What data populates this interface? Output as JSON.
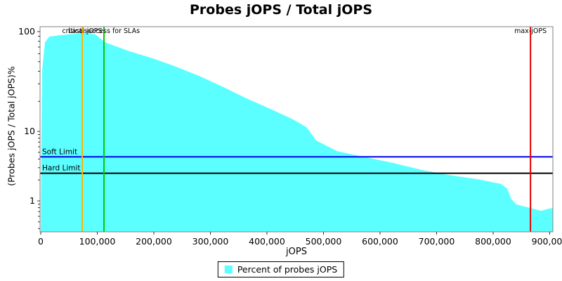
{
  "title": "Probes jOPS / Total jOPS",
  "colors": {
    "area": "#5CFFFF",
    "soft_limit": "#0000E6",
    "hard_limit": "#000000",
    "critical_marker": "#FFB400",
    "sla_marker": "#00CC00",
    "max_marker": "#E60000",
    "frame": "#808080",
    "tick": "#333333"
  },
  "chart_data": {
    "type": "area",
    "title": "Probes jOPS / Total jOPS",
    "xlabel": "jOPS",
    "ylabel": "(Probes jOPS / Total jOPS)%",
    "x_axis": {
      "min": 0,
      "max": 907000,
      "major_ticks": [
        0,
        100000,
        200000,
        300000,
        400000,
        500000,
        600000,
        700000,
        800000,
        900000
      ],
      "tick_labels": [
        "0",
        "100,000",
        "200,000",
        "300,000",
        "400,000",
        "500,000",
        "600,000",
        "700,000",
        "800,000",
        "900,000"
      ]
    },
    "y_axis": {
      "scale": "log",
      "min": 0.36,
      "max": 110,
      "major_ticks": [
        100,
        10,
        1
      ],
      "tick_labels": [
        "100",
        "10",
        "1"
      ],
      "minor_ticks": [
        90,
        80,
        70,
        60,
        50,
        40,
        30,
        20,
        9,
        8,
        7,
        6,
        5,
        4,
        3,
        2,
        0.9,
        0.8,
        0.7,
        0.6,
        0.5,
        0.4
      ]
    },
    "grid": false,
    "legend_position": "bottom-center",
    "legend": {
      "label": "Percent of probes jOPS"
    },
    "series": [
      {
        "name": "Percent of probes jOPS",
        "color": "#5CFFFF",
        "points": [
          [
            0,
            0.37
          ],
          [
            1200,
            10
          ],
          [
            2500,
            41
          ],
          [
            7500,
            78
          ],
          [
            15000,
            89
          ],
          [
            33000,
            92
          ],
          [
            58000,
            95
          ],
          [
            77000,
            97
          ],
          [
            96000,
            94
          ],
          [
            114000,
            78
          ],
          [
            155000,
            64
          ],
          [
            198000,
            54
          ],
          [
            239000,
            44.5
          ],
          [
            280000,
            36
          ],
          [
            322000,
            28
          ],
          [
            363000,
            21.5
          ],
          [
            404000,
            17
          ],
          [
            446000,
            13.2
          ],
          [
            470000,
            11
          ],
          [
            487000,
            7.4
          ],
          [
            524000,
            5.2
          ],
          [
            574000,
            4.25
          ],
          [
            624000,
            3.5
          ],
          [
            673000,
            2.8
          ],
          [
            723000,
            2.35
          ],
          [
            773000,
            2.05
          ],
          [
            814000,
            1.75
          ],
          [
            825000,
            1.5
          ],
          [
            832000,
            1.07
          ],
          [
            841000,
            0.89
          ],
          [
            866000,
            0.79
          ],
          [
            885000,
            0.72
          ],
          [
            897000,
            0.77
          ],
          [
            905000,
            0.79
          ]
        ]
      }
    ],
    "markers_vertical": [
      {
        "label": "critical-jOPS",
        "jops": 73300,
        "color": "#FFB400"
      },
      {
        "label": "Last success for SLAs",
        "jops": 111800,
        "color": "#00CC00"
      },
      {
        "label": "max-jOPS",
        "jops": 866000,
        "color": "#E60000"
      }
    ],
    "markers_horizontal": [
      {
        "label": "Soft Limit",
        "percent": 4.3,
        "color": "#0000E6"
      },
      {
        "label": "Hard Limit",
        "percent": 2.5,
        "color": "#000000"
      }
    ]
  }
}
